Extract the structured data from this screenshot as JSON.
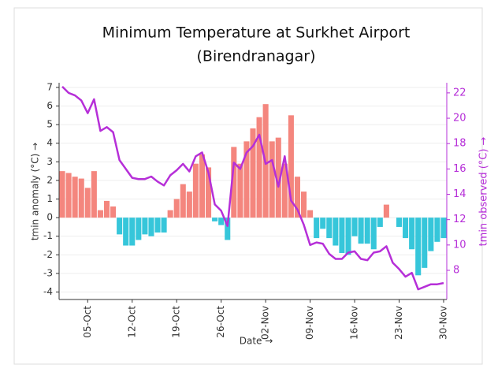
{
  "chart_data": {
    "type": "bar",
    "title": [
      "Minimum Temperature at Surkhet Airport",
      "(Birendranagar)"
    ],
    "xlabel": "Date →",
    "ylabel": "tmin anomaly (°C) →",
    "y2label": "tmin observed (°C) →",
    "categories": [
      null,
      null,
      null,
      null,
      "05-Oct",
      null,
      null,
      null,
      null,
      null,
      null,
      "12-Oct",
      null,
      null,
      null,
      null,
      null,
      null,
      "19-Oct",
      null,
      null,
      null,
      null,
      null,
      null,
      "26-Oct",
      null,
      null,
      null,
      null,
      null,
      null,
      "02-Nov",
      null,
      null,
      null,
      null,
      null,
      null,
      "09-Nov",
      null,
      null,
      null,
      null,
      null,
      null,
      "16-Nov",
      null,
      null,
      null,
      null,
      null,
      null,
      "23-Nov",
      null,
      null,
      null,
      null,
      null,
      null,
      "30-Nov"
    ],
    "series": [
      {
        "name": "tmin anomaly",
        "type": "bar",
        "positive_color": "#f4867e",
        "negative_color": "#36c6da",
        "values": [
          2.5,
          2.4,
          2.2,
          2.1,
          1.6,
          2.5,
          0.4,
          0.9,
          0.6,
          -0.9,
          -1.5,
          -1.5,
          -1.2,
          -0.9,
          -1.0,
          -0.8,
          -0.8,
          0.4,
          1.0,
          1.8,
          1.4,
          2.9,
          3.4,
          2.7,
          -0.2,
          -0.4,
          -1.2,
          3.8,
          2.9,
          4.1,
          4.8,
          5.4,
          6.1,
          4.1,
          4.3,
          2.9,
          5.5,
          2.2,
          1.4,
          0.4,
          -1.1,
          -0.6,
          -1.1,
          -1.5,
          -1.9,
          -2.0,
          -1.0,
          -1.4,
          -1.4,
          -1.7,
          -0.5,
          0.7,
          0,
          -0.5,
          -1.1,
          -1.7,
          -3.1,
          -2.7,
          -1.8,
          -1.3,
          -1.1
        ]
      },
      {
        "name": "tmin observed",
        "type": "line",
        "axis": "y2",
        "color": "#b62fd8",
        "values": [
          22.5,
          22.0,
          21.8,
          21.4,
          20.4,
          21.5,
          19.0,
          19.3,
          18.9,
          16.7,
          16.0,
          15.3,
          15.2,
          15.2,
          15.4,
          15.0,
          14.7,
          15.5,
          15.9,
          16.4,
          15.8,
          17.0,
          17.3,
          15.7,
          13.2,
          12.7,
          11.5,
          16.5,
          16.0,
          17.3,
          17.8,
          18.7,
          16.4,
          16.7,
          14.6,
          17.0,
          13.5,
          12.8,
          11.6,
          10.0,
          10.2,
          10.1,
          9.3,
          8.9,
          8.9,
          9.4,
          9.5,
          8.9,
          8.8,
          9.4,
          9.5,
          9.9,
          8.6,
          8.1,
          7.5,
          7.8,
          6.5,
          6.7,
          6.9,
          6.9,
          7.0
        ]
      }
    ],
    "ylim": [
      -4.4,
      7.25
    ],
    "yticks": [
      -4,
      -3,
      -2,
      -1,
      0,
      1,
      2,
      3,
      4,
      5,
      6,
      7
    ],
    "y2lim": [
      5.7,
      22.8
    ],
    "y2ticks": [
      8,
      10,
      12,
      14,
      16,
      18,
      20,
      22
    ],
    "grid": true
  }
}
